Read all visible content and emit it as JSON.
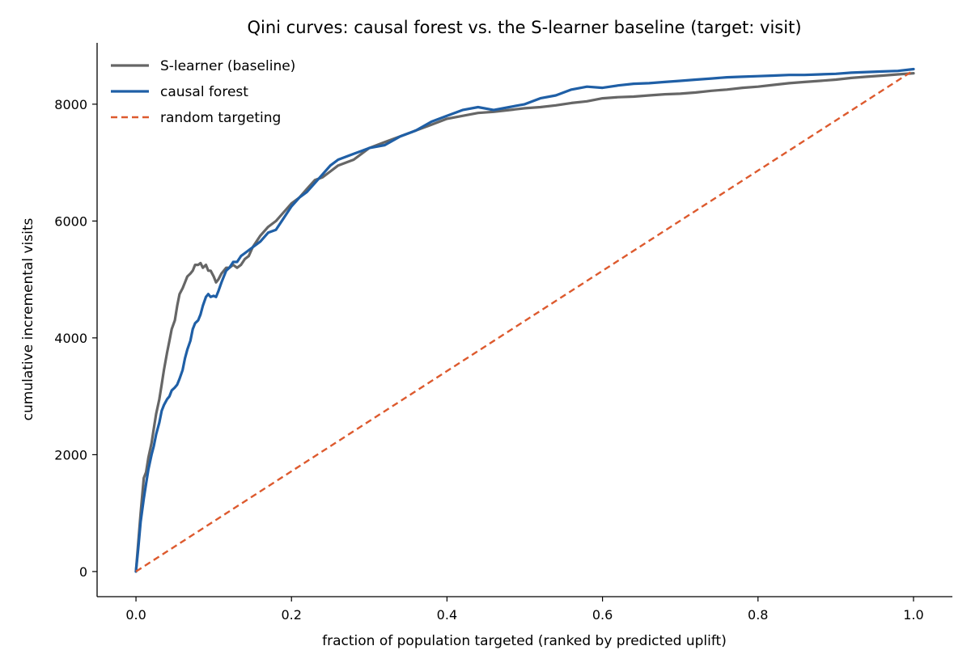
{
  "chart_data": {
    "type": "line",
    "title": "Qini curves: causal forest vs. the S-learner baseline (target: visit)",
    "xlabel": "fraction of population targeted (ranked by predicted uplift)",
    "ylabel": "cumulative incremental visits",
    "xlim": [
      -0.05,
      1.05
    ],
    "ylim": [
      -430,
      9050
    ],
    "xticks": [
      0.0,
      0.2,
      0.4,
      0.6,
      0.8,
      1.0
    ],
    "xtick_labels": [
      "0.0",
      "0.2",
      "0.4",
      "0.6",
      "0.8",
      "1.0"
    ],
    "yticks": [
      0,
      2000,
      4000,
      6000,
      8000
    ],
    "ytick_labels": [
      "0",
      "2000",
      "4000",
      "6000",
      "8000"
    ],
    "grid": false,
    "legend_position": "top-left",
    "series": [
      {
        "name": "S-learner (baseline)",
        "color": "#666666",
        "style": "solid",
        "x": [
          0.0,
          0.003,
          0.006,
          0.01,
          0.013,
          0.016,
          0.02,
          0.023,
          0.026,
          0.03,
          0.033,
          0.036,
          0.04,
          0.043,
          0.046,
          0.05,
          0.053,
          0.056,
          0.06,
          0.063,
          0.066,
          0.07,
          0.073,
          0.076,
          0.08,
          0.083,
          0.086,
          0.09,
          0.093,
          0.096,
          0.1,
          0.103,
          0.106,
          0.11,
          0.113,
          0.116,
          0.12,
          0.125,
          0.13,
          0.135,
          0.14,
          0.145,
          0.15,
          0.16,
          0.17,
          0.18,
          0.19,
          0.2,
          0.21,
          0.22,
          0.23,
          0.24,
          0.25,
          0.26,
          0.27,
          0.28,
          0.29,
          0.3,
          0.32,
          0.34,
          0.36,
          0.38,
          0.4,
          0.42,
          0.44,
          0.46,
          0.48,
          0.5,
          0.52,
          0.54,
          0.56,
          0.58,
          0.6,
          0.62,
          0.64,
          0.66,
          0.68,
          0.7,
          0.72,
          0.74,
          0.76,
          0.78,
          0.8,
          0.82,
          0.84,
          0.86,
          0.88,
          0.9,
          0.92,
          0.94,
          0.96,
          0.98,
          1.0
        ],
        "y": [
          0,
          500,
          1000,
          1600,
          1700,
          1950,
          2200,
          2450,
          2700,
          2950,
          3200,
          3450,
          3750,
          3950,
          4150,
          4300,
          4550,
          4750,
          4850,
          4950,
          5050,
          5100,
          5150,
          5250,
          5250,
          5280,
          5200,
          5250,
          5150,
          5150,
          5050,
          4950,
          5000,
          5100,
          5150,
          5200,
          5200,
          5250,
          5200,
          5250,
          5350,
          5400,
          5550,
          5750,
          5900,
          6000,
          6150,
          6300,
          6400,
          6550,
          6700,
          6750,
          6850,
          6950,
          7000,
          7050,
          7150,
          7250,
          7350,
          7450,
          7550,
          7650,
          7750,
          7800,
          7850,
          7870,
          7900,
          7930,
          7950,
          7980,
          8020,
          8050,
          8100,
          8120,
          8130,
          8150,
          8170,
          8180,
          8200,
          8230,
          8250,
          8280,
          8300,
          8330,
          8360,
          8380,
          8400,
          8420,
          8450,
          8470,
          8490,
          8510,
          8530
        ]
      },
      {
        "name": "causal forest",
        "color": "#1f5fa6",
        "style": "solid",
        "x": [
          0.0,
          0.003,
          0.006,
          0.01,
          0.013,
          0.016,
          0.02,
          0.023,
          0.026,
          0.03,
          0.033,
          0.036,
          0.04,
          0.043,
          0.046,
          0.05,
          0.053,
          0.056,
          0.06,
          0.063,
          0.066,
          0.07,
          0.073,
          0.076,
          0.08,
          0.083,
          0.086,
          0.09,
          0.093,
          0.096,
          0.1,
          0.103,
          0.106,
          0.11,
          0.113,
          0.116,
          0.12,
          0.125,
          0.13,
          0.135,
          0.14,
          0.145,
          0.15,
          0.16,
          0.17,
          0.18,
          0.19,
          0.2,
          0.21,
          0.22,
          0.23,
          0.24,
          0.25,
          0.26,
          0.27,
          0.28,
          0.29,
          0.3,
          0.32,
          0.34,
          0.36,
          0.38,
          0.4,
          0.42,
          0.44,
          0.46,
          0.48,
          0.5,
          0.52,
          0.54,
          0.56,
          0.58,
          0.6,
          0.62,
          0.64,
          0.66,
          0.68,
          0.7,
          0.72,
          0.74,
          0.76,
          0.78,
          0.8,
          0.82,
          0.84,
          0.86,
          0.88,
          0.9,
          0.92,
          0.94,
          0.96,
          0.98,
          1.0
        ],
        "y": [
          0,
          400,
          850,
          1250,
          1500,
          1750,
          2000,
          2150,
          2350,
          2550,
          2750,
          2850,
          2950,
          3000,
          3100,
          3150,
          3200,
          3300,
          3450,
          3650,
          3800,
          3950,
          4150,
          4250,
          4300,
          4400,
          4550,
          4700,
          4750,
          4700,
          4720,
          4700,
          4800,
          4950,
          5050,
          5150,
          5200,
          5300,
          5300,
          5400,
          5450,
          5500,
          5550,
          5650,
          5800,
          5850,
          6050,
          6250,
          6400,
          6500,
          6650,
          6800,
          6950,
          7050,
          7100,
          7150,
          7200,
          7250,
          7300,
          7450,
          7550,
          7700,
          7800,
          7900,
          7950,
          7900,
          7950,
          8000,
          8100,
          8150,
          8250,
          8300,
          8280,
          8320,
          8350,
          8360,
          8380,
          8400,
          8420,
          8440,
          8460,
          8470,
          8480,
          8490,
          8500,
          8500,
          8510,
          8520,
          8540,
          8550,
          8560,
          8570,
          8600
        ]
      },
      {
        "name": "random targeting",
        "color": "#dd5a2e",
        "style": "dashed",
        "x": [
          0.0,
          1.0
        ],
        "y": [
          0,
          8580
        ]
      }
    ]
  }
}
